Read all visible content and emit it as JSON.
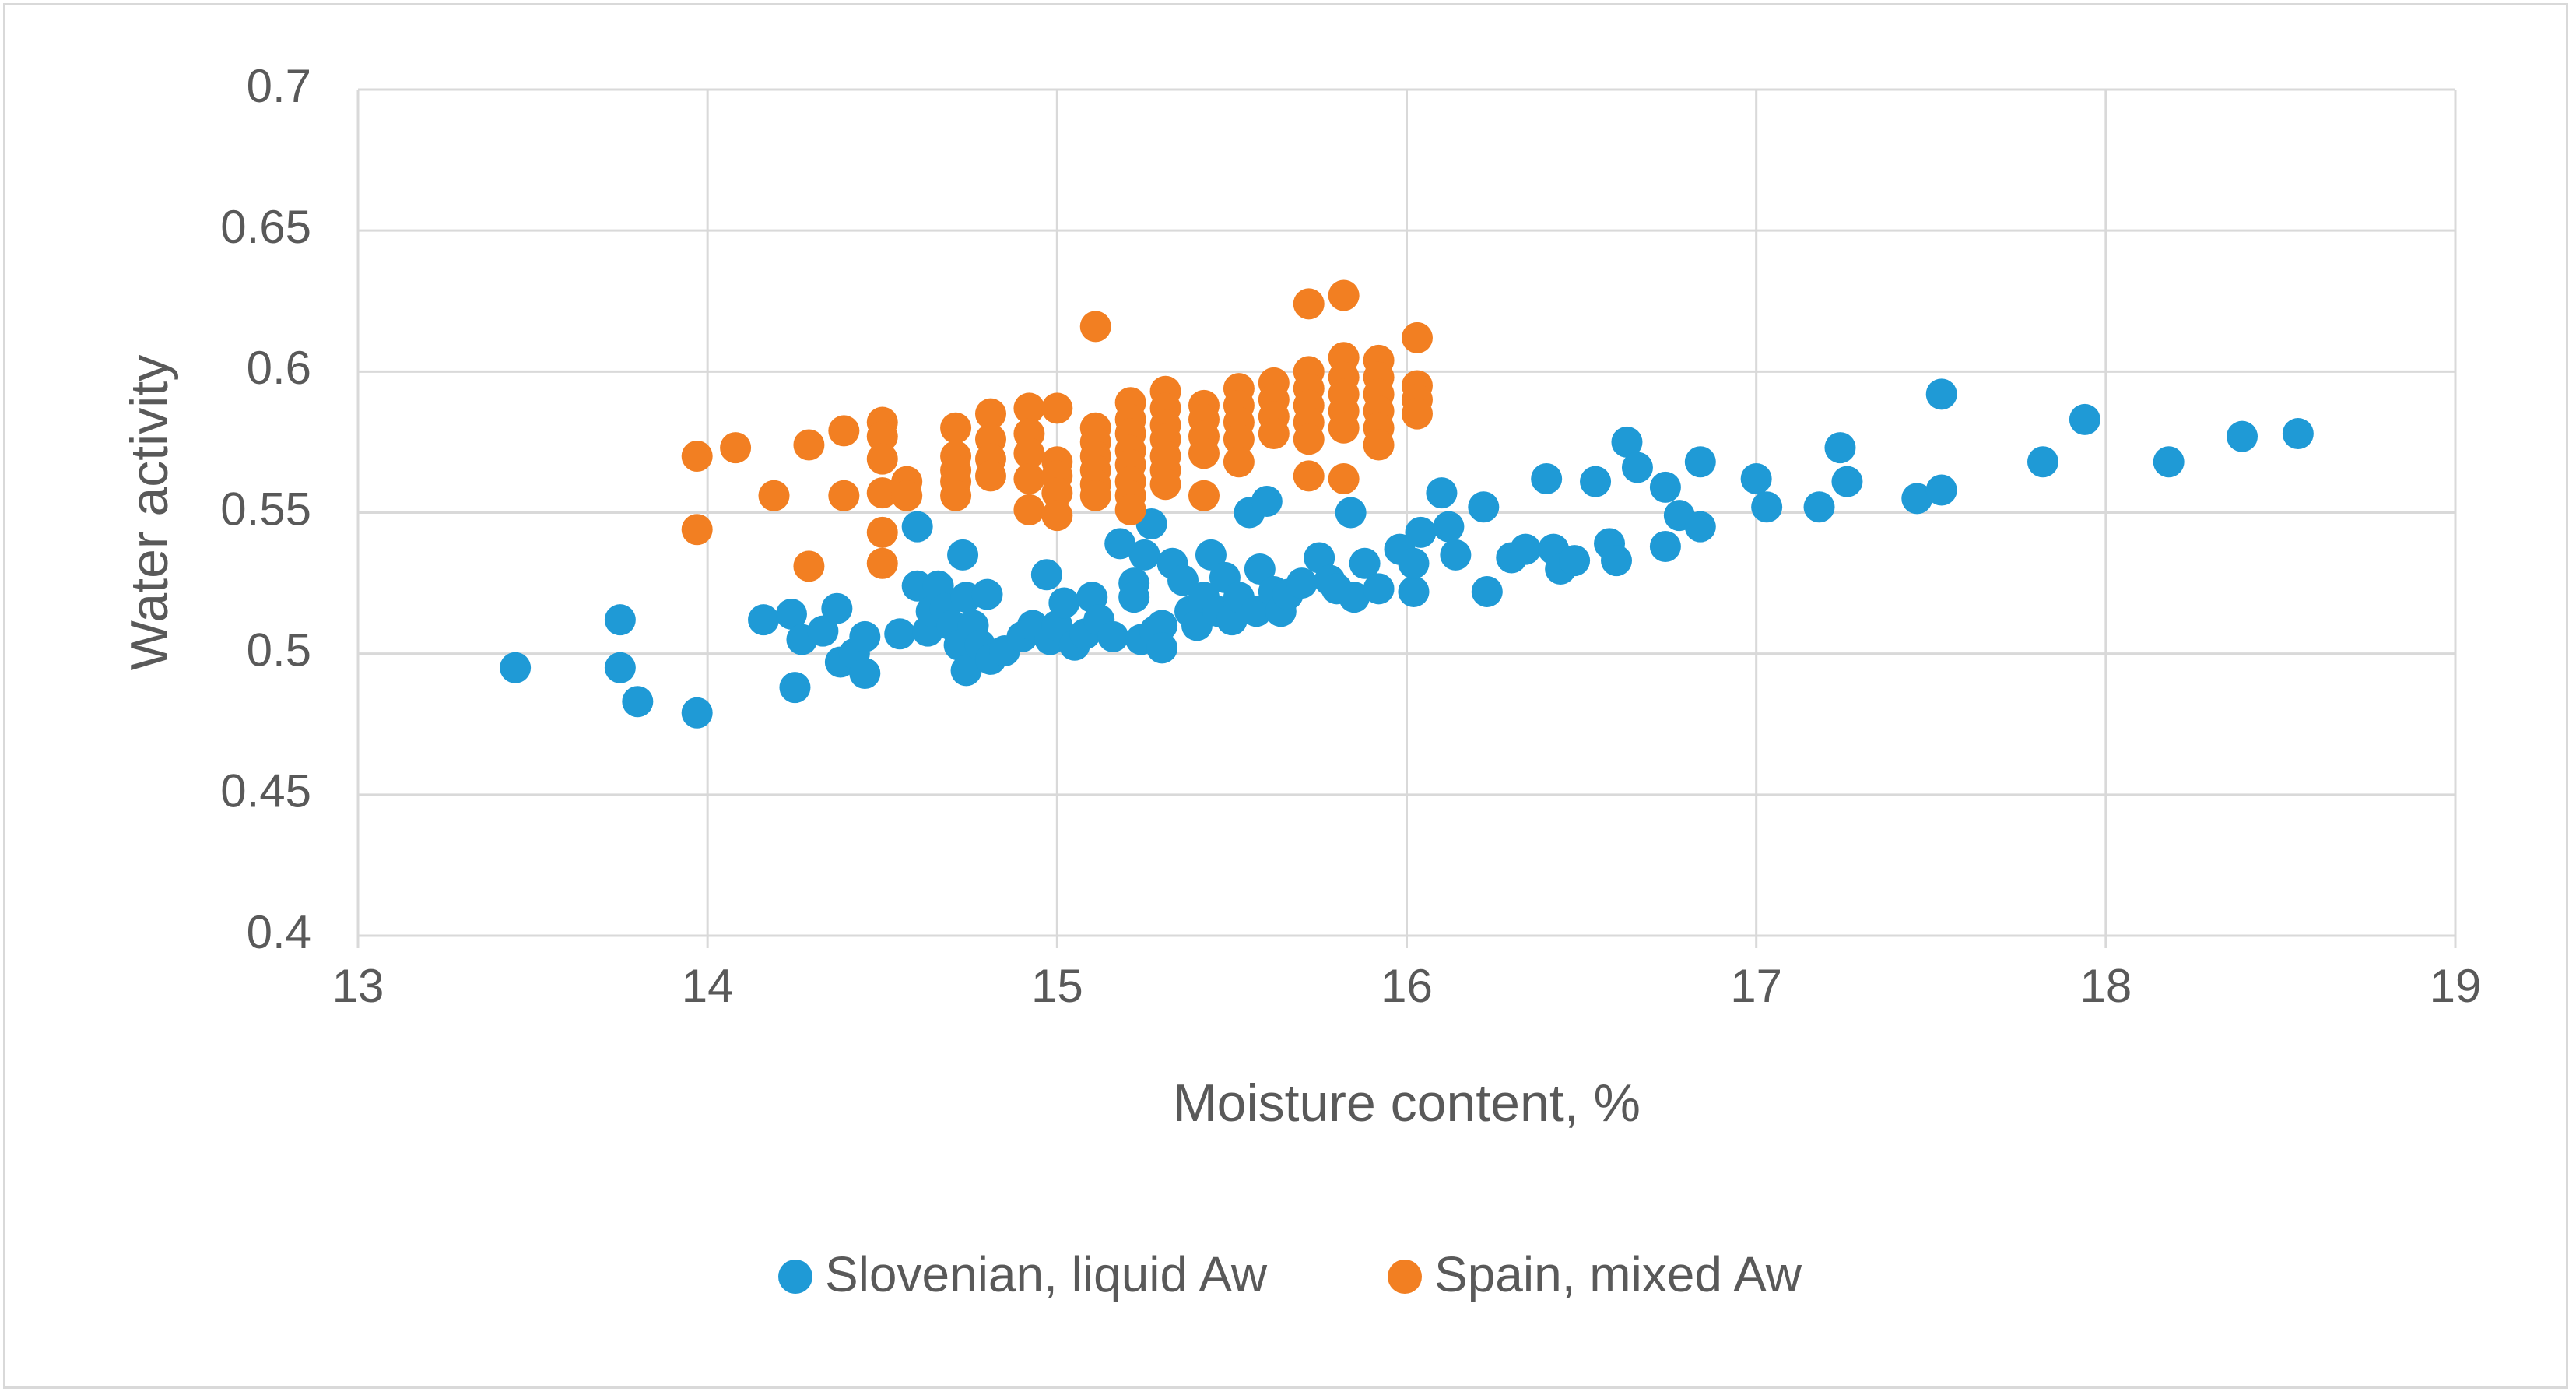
{
  "chart_data": {
    "type": "scatter",
    "title": "",
    "xlabel": "Moisture content, %",
    "ylabel": "Water activity",
    "xlim": [
      13,
      19
    ],
    "ylim": [
      0.4,
      0.7
    ],
    "xticks": [
      13,
      14,
      15,
      16,
      17,
      18,
      19
    ],
    "yticks": [
      0.4,
      0.45,
      0.5,
      0.55,
      0.6,
      0.65,
      0.7
    ],
    "grid": true,
    "legend_position": "bottom",
    "series": [
      {
        "name": "Slovenian, liquid Aw",
        "color": "#1f9ad6",
        "points": [
          [
            13.45,
            0.495
          ],
          [
            13.75,
            0.512
          ],
          [
            13.75,
            0.495
          ],
          [
            13.8,
            0.483
          ],
          [
            13.97,
            0.479
          ],
          [
            14.16,
            0.512
          ],
          [
            14.24,
            0.514
          ],
          [
            14.25,
            0.488
          ],
          [
            14.27,
            0.505
          ],
          [
            14.33,
            0.508
          ],
          [
            14.37,
            0.516
          ],
          [
            14.38,
            0.497
          ],
          [
            14.42,
            0.5
          ],
          [
            14.45,
            0.493
          ],
          [
            14.45,
            0.506
          ],
          [
            14.55,
            0.507
          ],
          [
            14.6,
            0.545
          ],
          [
            14.6,
            0.524
          ],
          [
            14.63,
            0.508
          ],
          [
            14.64,
            0.515
          ],
          [
            14.66,
            0.524
          ],
          [
            14.68,
            0.516
          ],
          [
            14.7,
            0.51
          ],
          [
            14.72,
            0.503
          ],
          [
            14.73,
            0.535
          ],
          [
            14.74,
            0.52
          ],
          [
            14.74,
            0.494
          ],
          [
            14.76,
            0.51
          ],
          [
            14.78,
            0.503
          ],
          [
            14.8,
            0.521
          ],
          [
            14.81,
            0.498
          ],
          [
            14.85,
            0.501
          ],
          [
            14.9,
            0.506
          ],
          [
            14.93,
            0.51
          ],
          [
            14.97,
            0.528
          ],
          [
            14.98,
            0.505
          ],
          [
            15.0,
            0.51
          ],
          [
            15.02,
            0.518
          ],
          [
            15.05,
            0.503
          ],
          [
            15.08,
            0.507
          ],
          [
            15.1,
            0.52
          ],
          [
            15.12,
            0.512
          ],
          [
            15.16,
            0.506
          ],
          [
            15.18,
            0.539
          ],
          [
            15.22,
            0.525
          ],
          [
            15.22,
            0.52
          ],
          [
            15.24,
            0.505
          ],
          [
            15.25,
            0.535
          ],
          [
            15.27,
            0.546
          ],
          [
            15.28,
            0.508
          ],
          [
            15.3,
            0.51
          ],
          [
            15.3,
            0.502
          ],
          [
            15.33,
            0.532
          ],
          [
            15.36,
            0.526
          ],
          [
            15.38,
            0.515
          ],
          [
            15.4,
            0.51
          ],
          [
            15.42,
            0.52
          ],
          [
            15.44,
            0.535
          ],
          [
            15.46,
            0.515
          ],
          [
            15.48,
            0.527
          ],
          [
            15.5,
            0.512
          ],
          [
            15.52,
            0.52
          ],
          [
            15.55,
            0.55
          ],
          [
            15.57,
            0.515
          ],
          [
            15.58,
            0.53
          ],
          [
            15.6,
            0.554
          ],
          [
            15.62,
            0.522
          ],
          [
            15.64,
            0.515
          ],
          [
            15.66,
            0.521
          ],
          [
            15.7,
            0.525
          ],
          [
            15.75,
            0.534
          ],
          [
            15.78,
            0.526
          ],
          [
            15.8,
            0.523
          ],
          [
            15.84,
            0.55
          ],
          [
            15.85,
            0.52
          ],
          [
            15.88,
            0.532
          ],
          [
            15.92,
            0.523
          ],
          [
            15.98,
            0.537
          ],
          [
            16.02,
            0.522
          ],
          [
            16.02,
            0.532
          ],
          [
            16.04,
            0.543
          ],
          [
            16.1,
            0.557
          ],
          [
            16.12,
            0.545
          ],
          [
            16.14,
            0.535
          ],
          [
            16.22,
            0.552
          ],
          [
            16.23,
            0.522
          ],
          [
            16.3,
            0.534
          ],
          [
            16.34,
            0.537
          ],
          [
            16.4,
            0.562
          ],
          [
            16.42,
            0.537
          ],
          [
            16.44,
            0.53
          ],
          [
            16.48,
            0.533
          ],
          [
            16.54,
            0.561
          ],
          [
            16.58,
            0.539
          ],
          [
            16.6,
            0.533
          ],
          [
            16.63,
            0.575
          ],
          [
            16.66,
            0.566
          ],
          [
            16.74,
            0.559
          ],
          [
            16.74,
            0.538
          ],
          [
            16.78,
            0.549
          ],
          [
            16.84,
            0.568
          ],
          [
            16.84,
            0.545
          ],
          [
            17.0,
            0.562
          ],
          [
            17.03,
            0.552
          ],
          [
            17.18,
            0.552
          ],
          [
            17.24,
            0.573
          ],
          [
            17.26,
            0.561
          ],
          [
            17.46,
            0.555
          ],
          [
            17.53,
            0.592
          ],
          [
            17.53,
            0.558
          ],
          [
            17.82,
            0.568
          ],
          [
            17.94,
            0.583
          ],
          [
            18.18,
            0.568
          ],
          [
            18.39,
            0.577
          ],
          [
            18.55,
            0.578
          ]
        ]
      },
      {
        "name": "Spain, mixed Aw",
        "color": "#f27f22",
        "points": [
          [
            13.97,
            0.57
          ],
          [
            13.97,
            0.544
          ],
          [
            14.08,
            0.573
          ],
          [
            14.19,
            0.556
          ],
          [
            14.29,
            0.574
          ],
          [
            14.29,
            0.531
          ],
          [
            14.39,
            0.579
          ],
          [
            14.39,
            0.556
          ],
          [
            14.5,
            0.582
          ],
          [
            14.5,
            0.577
          ],
          [
            14.5,
            0.569
          ],
          [
            14.5,
            0.557
          ],
          [
            14.5,
            0.543
          ],
          [
            14.5,
            0.532
          ],
          [
            14.57,
            0.561
          ],
          [
            14.57,
            0.556
          ],
          [
            14.71,
            0.58
          ],
          [
            14.71,
            0.57
          ],
          [
            14.71,
            0.565
          ],
          [
            14.71,
            0.561
          ],
          [
            14.71,
            0.556
          ],
          [
            14.81,
            0.585
          ],
          [
            14.81,
            0.576
          ],
          [
            14.81,
            0.569
          ],
          [
            14.81,
            0.563
          ],
          [
            14.92,
            0.587
          ],
          [
            14.92,
            0.578
          ],
          [
            14.92,
            0.571
          ],
          [
            14.92,
            0.562
          ],
          [
            14.92,
            0.551
          ],
          [
            15.0,
            0.587
          ],
          [
            15.0,
            0.568
          ],
          [
            15.0,
            0.563
          ],
          [
            15.0,
            0.557
          ],
          [
            15.0,
            0.549
          ],
          [
            15.11,
            0.616
          ],
          [
            15.11,
            0.58
          ],
          [
            15.11,
            0.575
          ],
          [
            15.11,
            0.57
          ],
          [
            15.11,
            0.565
          ],
          [
            15.11,
            0.56
          ],
          [
            15.11,
            0.556
          ],
          [
            15.21,
            0.589
          ],
          [
            15.21,
            0.583
          ],
          [
            15.21,
            0.578
          ],
          [
            15.21,
            0.572
          ],
          [
            15.21,
            0.567
          ],
          [
            15.21,
            0.561
          ],
          [
            15.21,
            0.556
          ],
          [
            15.21,
            0.551
          ],
          [
            15.31,
            0.593
          ],
          [
            15.31,
            0.587
          ],
          [
            15.31,
            0.581
          ],
          [
            15.31,
            0.576
          ],
          [
            15.31,
            0.57
          ],
          [
            15.31,
            0.565
          ],
          [
            15.31,
            0.56
          ],
          [
            15.42,
            0.588
          ],
          [
            15.42,
            0.583
          ],
          [
            15.42,
            0.577
          ],
          [
            15.42,
            0.571
          ],
          [
            15.42,
            0.556
          ],
          [
            15.52,
            0.594
          ],
          [
            15.52,
            0.588
          ],
          [
            15.52,
            0.582
          ],
          [
            15.52,
            0.576
          ],
          [
            15.52,
            0.568
          ],
          [
            15.62,
            0.596
          ],
          [
            15.62,
            0.59
          ],
          [
            15.62,
            0.584
          ],
          [
            15.62,
            0.578
          ],
          [
            15.72,
            0.624
          ],
          [
            15.72,
            0.6
          ],
          [
            15.72,
            0.594
          ],
          [
            15.72,
            0.588
          ],
          [
            15.72,
            0.582
          ],
          [
            15.72,
            0.576
          ],
          [
            15.72,
            0.563
          ],
          [
            15.82,
            0.627
          ],
          [
            15.82,
            0.605
          ],
          [
            15.82,
            0.598
          ],
          [
            15.82,
            0.592
          ],
          [
            15.82,
            0.586
          ],
          [
            15.82,
            0.58
          ],
          [
            15.82,
            0.562
          ],
          [
            15.92,
            0.604
          ],
          [
            15.92,
            0.598
          ],
          [
            15.92,
            0.592
          ],
          [
            15.92,
            0.586
          ],
          [
            15.92,
            0.58
          ],
          [
            15.92,
            0.574
          ],
          [
            16.03,
            0.612
          ],
          [
            16.03,
            0.595
          ],
          [
            16.03,
            0.59
          ],
          [
            16.03,
            0.585
          ]
        ]
      }
    ]
  }
}
